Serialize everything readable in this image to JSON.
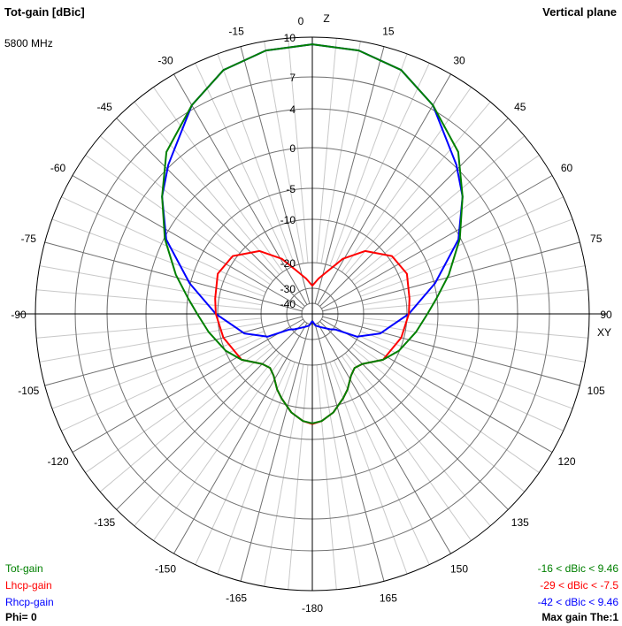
{
  "header": {
    "title": "Tot-gain [dBic]",
    "plane": "Vertical plane",
    "frequency": "5800 MHz"
  },
  "footer": {
    "phi": "Phi= 0",
    "max_gain": "Max gain The:1"
  },
  "chart_data": {
    "type": "polar-line",
    "title": "Tot-gain [dBic]",
    "subtitle": "Vertical plane",
    "frequency": "5800 MHz",
    "axis_top_label": "Z",
    "axis_right_label": "XY",
    "radial_unit": "dBic",
    "radial_ticks": [
      10,
      7,
      4,
      0,
      -5,
      -10,
      -20,
      -30,
      -40
    ],
    "radial_tick_labels": [
      "10",
      "7",
      "4",
      "0",
      "-5",
      "-10",
      "-20",
      "-30",
      "-40"
    ],
    "angle_ticks": [
      0,
      15,
      30,
      45,
      60,
      75,
      90,
      105,
      120,
      135,
      150,
      165,
      180,
      -165,
      -150,
      -135,
      -120,
      -105,
      -90,
      -75,
      -60,
      -45,
      -30,
      -15
    ],
    "angle_tick_labels": [
      "0",
      "15",
      "30",
      "45",
      "60",
      "75",
      "90",
      "105",
      "120",
      "135",
      "150",
      "165",
      "-180",
      "-165",
      "-150",
      "-135",
      "-120",
      "-105",
      "-90",
      "-75",
      "-60",
      "-45",
      "-30",
      "-15"
    ],
    "grid": true,
    "series": [
      {
        "name": "Tot-gain",
        "color": "#008000",
        "range_text": "-16 < dBic < 9.46",
        "theta": [
          0,
          10,
          20,
          30,
          42,
          52,
          63,
          74,
          83,
          90,
          100,
          113,
          123,
          135,
          142,
          148,
          155,
          160,
          168,
          175,
          180
        ],
        "gain": [
          9.46,
          9.3,
          8.7,
          7.3,
          5.2,
          2.5,
          -0.1,
          -3.0,
          -5.1,
          -6.7,
          -8.3,
          -10.1,
          -12.4,
          -15.5,
          -16,
          -15,
          -12.6,
          -11.1,
          -9.0,
          -7.9,
          -7.6
        ]
      },
      {
        "name": "Lhcp-gain",
        "color": "#ff0000",
        "range_text": "-29 < dBic < -7.5",
        "theta": [
          0,
          10,
          19.5,
          29,
          40,
          54,
          67,
          81,
          90,
          105,
          123,
          135,
          142,
          148,
          155,
          160,
          168,
          175,
          180
        ],
        "gain": [
          -29,
          -26,
          -22.4,
          -17.3,
          -12.9,
          -9.4,
          -8.7,
          -9.4,
          -9.7,
          -10.6,
          -12.4,
          -15.5,
          -16,
          -15,
          -12.6,
          -11.1,
          -9.0,
          -7.9,
          -7.5
        ]
      },
      {
        "name": "Rhcp-gain",
        "color": "#0000ff",
        "range_text": "-42 < dBic < 9.46",
        "theta": [
          0,
          10,
          20,
          30,
          44,
          52,
          63,
          76,
          90,
          100,
          106,
          117,
          124,
          131,
          150,
          165,
          180
        ],
        "gain": [
          9.46,
          9.3,
          8.7,
          7.3,
          4.2,
          2.5,
          -0.3,
          -4.9,
          -9.7,
          -13.9,
          -15.5,
          -20.4,
          -29,
          -31.5,
          -37,
          -39,
          -42
        ]
      }
    ],
    "legend_placement": "bottom-left"
  }
}
